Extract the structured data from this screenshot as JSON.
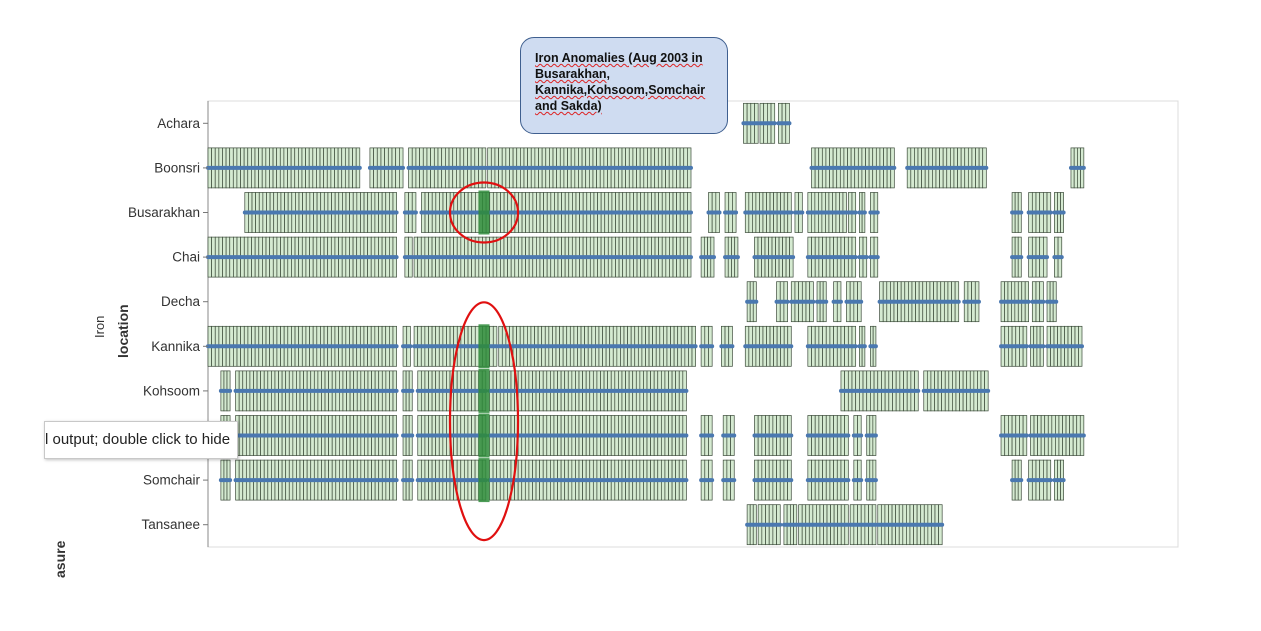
{
  "callout": {
    "text": "Iron Anomalies (Aug 2003 in Busarakhan, Kannika,Kohsoom,Somchair and Sakda)"
  },
  "tooltip": {
    "text": "l output; double click to hide"
  },
  "labels": {
    "measure": "Iron",
    "y_field": "location",
    "bottom_cut": "asure"
  },
  "colors": {
    "cell_fill": "#d5ead1",
    "cell_stroke": "#3b4a39",
    "value_line": "#4a78b0",
    "anomaly": "#2e8b3a",
    "highlight_ring": "#e01010"
  },
  "chart_data": {
    "type": "heatmap",
    "title": "",
    "measure": "Iron",
    "ylabel": "location",
    "categories": [
      "Achara",
      "Boonsri",
      "Busarakhan",
      "Chai",
      "Decha",
      "Kannika",
      "Kohsoom",
      "Sakda",
      "Somchair",
      "Tansanee"
    ],
    "anomaly_period": "Aug 2003",
    "anomaly_locations": [
      "Busarakhan",
      "Kannika",
      "Kohsoom",
      "Somchair",
      "Sakda"
    ],
    "x_range": [
      0,
      100
    ],
    "coverage": [
      {
        "location": "Achara",
        "ranges": [
          [
            58.2,
            59.8
          ],
          [
            60.0,
            61.6
          ],
          [
            62.0,
            63.2
          ]
        ]
      },
      {
        "location": "Boonsri",
        "ranges": [
          [
            0,
            16.5
          ],
          [
            17.6,
            21.2
          ],
          [
            21.8,
            30.2
          ],
          [
            30.4,
            52.5
          ],
          [
            65.6,
            74.6
          ],
          [
            76.0,
            84.6
          ],
          [
            93.8,
            95.2
          ]
        ]
      },
      {
        "location": "Busarakhan",
        "ranges": [
          [
            4.0,
            20.5
          ],
          [
            21.4,
            22.6
          ],
          [
            23.2,
            52.5
          ],
          [
            54.4,
            55.6
          ],
          [
            56.2,
            57.4
          ],
          [
            58.4,
            63.4
          ],
          [
            63.8,
            64.6
          ],
          [
            65.2,
            69.4
          ],
          [
            69.6,
            70.4
          ],
          [
            70.8,
            71.4
          ],
          [
            72.0,
            72.8
          ],
          [
            87.4,
            88.4
          ],
          [
            89.2,
            91.6
          ],
          [
            92.0,
            93.0
          ]
        ]
      },
      {
        "location": "Chai",
        "ranges": [
          [
            0,
            20.5
          ],
          [
            21.4,
            22.2
          ],
          [
            22.4,
            52.5
          ],
          [
            53.6,
            55.0
          ],
          [
            56.2,
            57.6
          ],
          [
            59.4,
            63.6
          ],
          [
            65.2,
            70.4
          ],
          [
            70.8,
            71.6
          ],
          [
            72.0,
            72.8
          ],
          [
            87.4,
            88.4
          ],
          [
            89.2,
            91.2
          ],
          [
            92.0,
            92.8
          ]
        ]
      },
      {
        "location": "Decha",
        "ranges": [
          [
            58.6,
            59.6
          ],
          [
            61.8,
            63.0
          ],
          [
            63.4,
            65.8
          ],
          [
            66.2,
            67.2
          ],
          [
            68.0,
            68.8
          ],
          [
            69.4,
            71.0
          ],
          [
            73.0,
            81.6
          ],
          [
            82.2,
            83.8
          ],
          [
            86.2,
            89.2
          ],
          [
            89.6,
            90.8
          ],
          [
            91.2,
            92.2
          ]
        ]
      },
      {
        "location": "Kannika",
        "ranges": [
          [
            0,
            20.5
          ],
          [
            21.2,
            22.0
          ],
          [
            22.4,
            31.4
          ],
          [
            31.6,
            53.0
          ],
          [
            53.6,
            54.8
          ],
          [
            55.8,
            57.0
          ],
          [
            58.4,
            63.4
          ],
          [
            65.2,
            70.4
          ],
          [
            70.8,
            71.4
          ],
          [
            72.0,
            72.6
          ],
          [
            86.2,
            89.0
          ],
          [
            89.4,
            90.8
          ],
          [
            91.2,
            95.0
          ]
        ]
      },
      {
        "location": "Kohsoom",
        "ranges": [
          [
            1.4,
            2.4
          ],
          [
            3.0,
            20.5
          ],
          [
            21.2,
            22.2
          ],
          [
            22.8,
            30.2
          ],
          [
            30.6,
            52.0
          ],
          [
            68.8,
            77.2
          ],
          [
            77.8,
            84.8
          ]
        ]
      },
      {
        "location": "Sakda",
        "ranges": [
          [
            1.4,
            2.4
          ],
          [
            3.0,
            20.5
          ],
          [
            21.2,
            22.2
          ],
          [
            22.8,
            30.2
          ],
          [
            30.6,
            52.0
          ],
          [
            53.6,
            54.8
          ],
          [
            56.0,
            57.2
          ],
          [
            59.4,
            63.4
          ],
          [
            65.2,
            69.6
          ],
          [
            70.2,
            71.0
          ],
          [
            71.6,
            72.6
          ],
          [
            86.2,
            89.0
          ],
          [
            89.4,
            95.2
          ]
        ]
      },
      {
        "location": "Somchair",
        "ranges": [
          [
            1.4,
            2.4
          ],
          [
            3.0,
            20.5
          ],
          [
            21.2,
            22.2
          ],
          [
            22.8,
            30.2
          ],
          [
            30.6,
            52.0
          ],
          [
            53.6,
            54.8
          ],
          [
            56.0,
            57.2
          ],
          [
            59.4,
            63.4
          ],
          [
            65.2,
            69.6
          ],
          [
            70.2,
            71.0
          ],
          [
            71.6,
            72.6
          ],
          [
            87.4,
            88.4
          ],
          [
            89.2,
            91.6
          ],
          [
            92.0,
            93.0
          ]
        ]
      },
      {
        "location": "Tansanee",
        "ranges": [
          [
            58.6,
            59.6
          ],
          [
            59.8,
            62.2
          ],
          [
            62.6,
            64.0
          ],
          [
            64.2,
            69.6
          ],
          [
            69.8,
            72.6
          ],
          [
            72.8,
            79.8
          ]
        ]
      }
    ],
    "highlighted_range": [
      29.4,
      30.6
    ],
    "grid": false,
    "legend": "none"
  }
}
